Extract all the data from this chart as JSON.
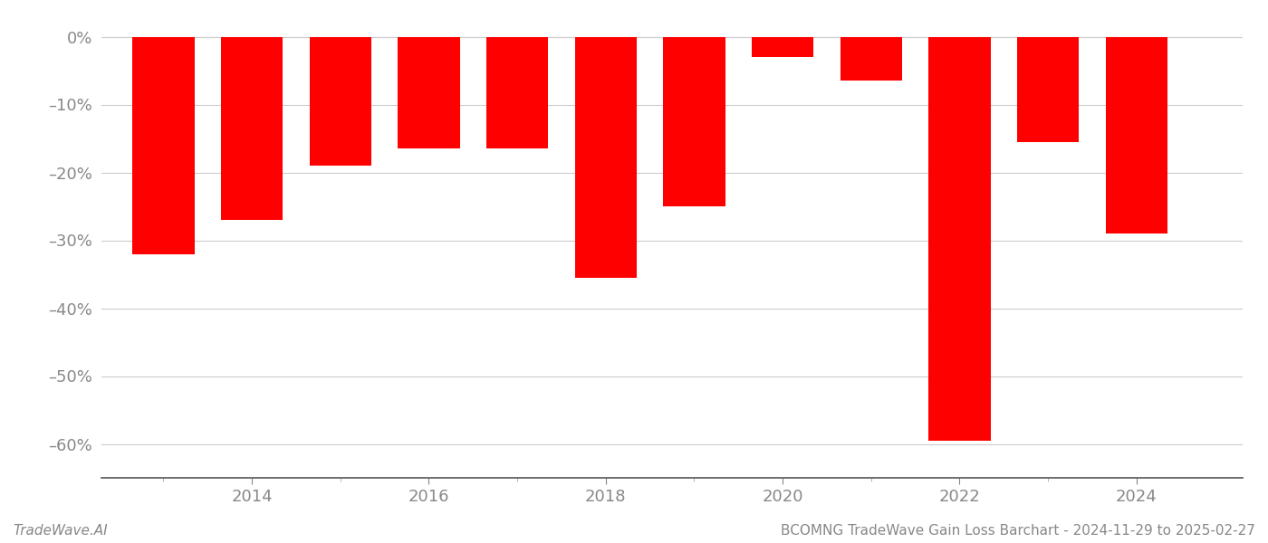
{
  "years": [
    2013,
    2014,
    2015,
    2016,
    2017,
    2018,
    2019,
    2020,
    2021,
    2022,
    2023,
    2024
  ],
  "values": [
    -32.0,
    -27.0,
    -19.0,
    -16.5,
    -16.5,
    -35.5,
    -25.0,
    -3.0,
    -6.5,
    -59.5,
    -15.5,
    -29.0
  ],
  "bar_color": "#ff0000",
  "background_color": "#ffffff",
  "grid_color": "#cccccc",
  "axis_label_color": "#888888",
  "ylabel_ticks": [
    0,
    -10,
    -20,
    -30,
    -40,
    -50,
    -60
  ],
  "ylabel_labels": [
    "0%",
    "–10%",
    "–20%",
    "–30%",
    "–40%",
    "–50%",
    "–60%"
  ],
  "xtick_years": [
    2014,
    2016,
    2018,
    2020,
    2022,
    2024
  ],
  "footer_left": "TradeWave.AI",
  "footer_right": "BCOMNG TradeWave Gain Loss Barchart - 2024-11-29 to 2025-02-27",
  "ylim_bottom": -65,
  "ylim_top": 3,
  "bar_width": 0.7,
  "xlim_left": 2012.3,
  "xlim_right": 2025.2
}
